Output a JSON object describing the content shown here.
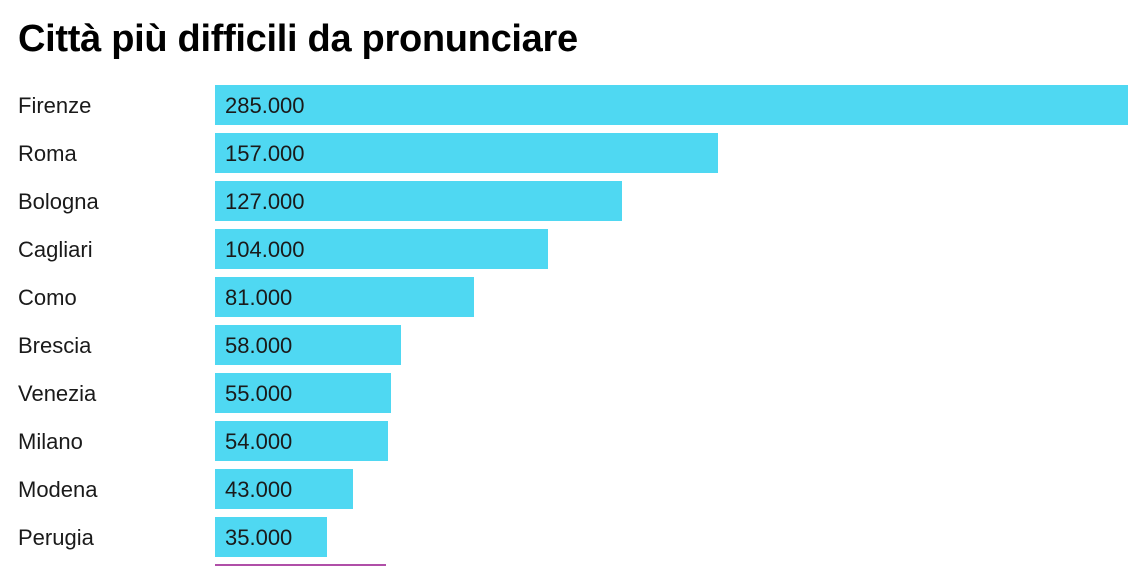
{
  "chart_data": {
    "type": "bar",
    "orientation": "horizontal",
    "title": "Città più difficili da pronunciare",
    "xlabel": "",
    "ylabel": "",
    "categories": [
      "Firenze",
      "Roma",
      "Bologna",
      "Cagliari",
      "Como",
      "Brescia",
      "Venezia",
      "Milano",
      "Modena",
      "Perugia"
    ],
    "values": [
      285000,
      157000,
      127000,
      104000,
      81000,
      58000,
      55000,
      54000,
      43000,
      35000
    ],
    "value_labels": [
      "285.000",
      "157.000",
      "127.000",
      "104.000",
      "81.000",
      "58.000",
      "55.000",
      "54.000",
      "43.000",
      "35.000"
    ],
    "xlim": [
      0,
      285000
    ],
    "grid": false,
    "legend": "none",
    "bar_color": "#4fd8f2",
    "partial_bar_color": "#b04fa8"
  }
}
